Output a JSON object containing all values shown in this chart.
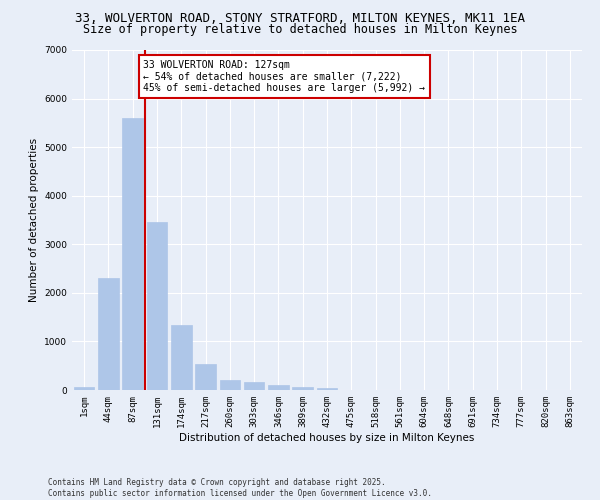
{
  "title_line1": "33, WOLVERTON ROAD, STONY STRATFORD, MILTON KEYNES, MK11 1EA",
  "title_line2": "Size of property relative to detached houses in Milton Keynes",
  "xlabel": "Distribution of detached houses by size in Milton Keynes",
  "ylabel": "Number of detached properties",
  "categories": [
    "1sqm",
    "44sqm",
    "87sqm",
    "131sqm",
    "174sqm",
    "217sqm",
    "260sqm",
    "303sqm",
    "346sqm",
    "389sqm",
    "432sqm",
    "475sqm",
    "518sqm",
    "561sqm",
    "604sqm",
    "648sqm",
    "691sqm",
    "734sqm",
    "777sqm",
    "820sqm",
    "863sqm"
  ],
  "values": [
    70,
    2300,
    5600,
    3450,
    1330,
    530,
    210,
    175,
    100,
    60,
    35,
    0,
    0,
    0,
    0,
    0,
    0,
    0,
    0,
    0,
    0
  ],
  "bar_color": "#aec6e8",
  "bar_edge_color": "#aec6e8",
  "vline_x_index": 2,
  "vline_color": "#cc0000",
  "annotation_title": "33 WOLVERTON ROAD: 127sqm",
  "annotation_line2": "← 54% of detached houses are smaller (7,222)",
  "annotation_line3": "45% of semi-detached houses are larger (5,992) →",
  "annotation_box_color": "#cc0000",
  "annotation_facecolor": "white",
  "ylim": [
    0,
    7000
  ],
  "yticks": [
    0,
    1000,
    2000,
    3000,
    4000,
    5000,
    6000,
    7000
  ],
  "bg_color": "#e8eef8",
  "plot_bg_color": "#e8eef8",
  "footer_line1": "Contains HM Land Registry data © Crown copyright and database right 2025.",
  "footer_line2": "Contains public sector information licensed under the Open Government Licence v3.0.",
  "title_fontsize": 9,
  "subtitle_fontsize": 8.5,
  "tick_fontsize": 6.5,
  "label_fontsize": 7.5,
  "annot_fontsize": 7,
  "footer_fontsize": 5.5
}
